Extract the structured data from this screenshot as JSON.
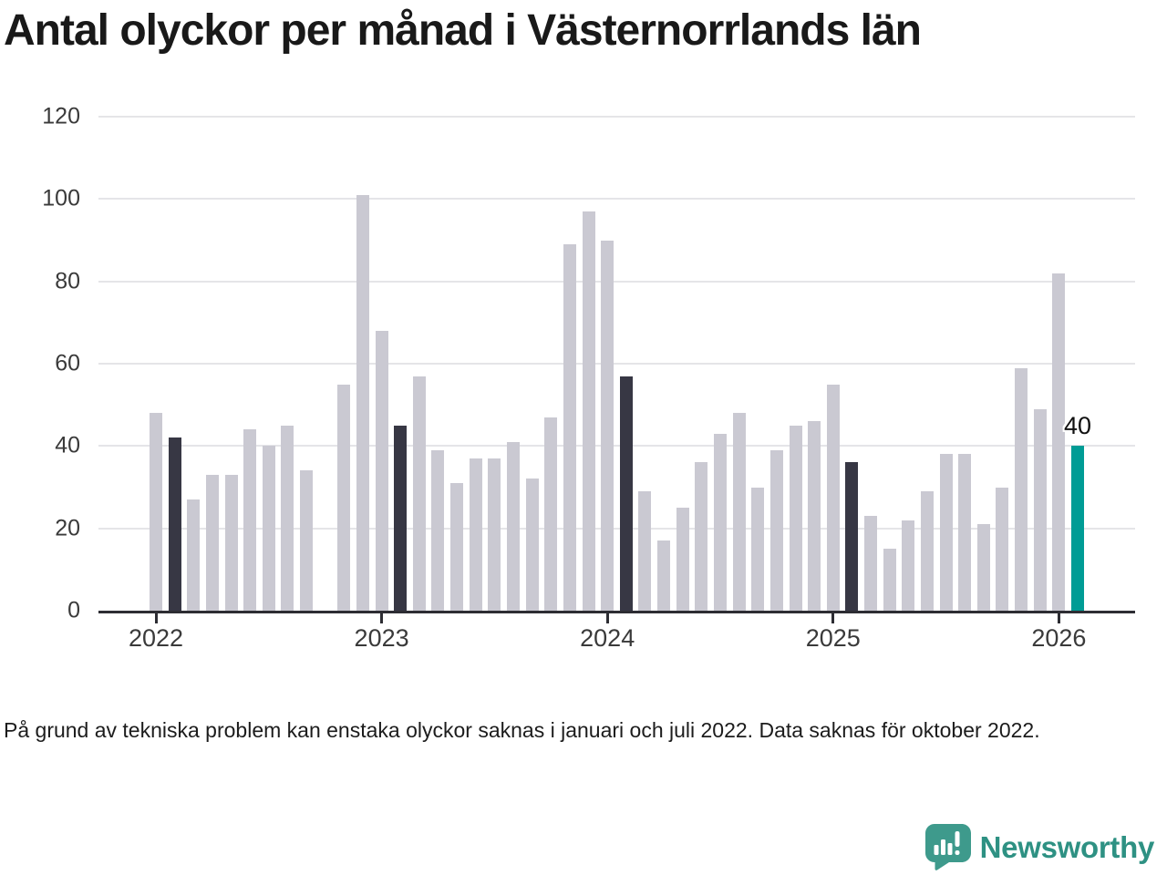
{
  "title": "Antal olyckor per månad i Västernorrlands län",
  "footnote": "På grund av tekniska problem kan enstaka olyckor saknas i januari och juli 2022. Data saknas för oktober 2022.",
  "brand": {
    "name": "Newsworthy"
  },
  "colors": {
    "bar_default": "#cac9d2",
    "bar_highlight": "#373744",
    "bar_latest": "#009c95",
    "axis": "#2d2d33",
    "gridline": "#e5e5e8",
    "tick_label": "#3a3a3a",
    "logo_teal": "#3e9a8c"
  },
  "chart_data": {
    "type": "bar",
    "title": "Antal olyckor per månad i Västernorrlands län",
    "xlabel": "",
    "ylabel": "",
    "ylim": [
      0,
      120
    ],
    "yticks": [
      0,
      20,
      40,
      60,
      80,
      100,
      120
    ],
    "grid": "horizontal",
    "legend": false,
    "annotation": {
      "month": "2026-02",
      "text": "40"
    },
    "year_ticks": [
      {
        "label": "2022",
        "index": 0
      },
      {
        "label": "2023",
        "index": 12
      },
      {
        "label": "2024",
        "index": 24
      },
      {
        "label": "2025",
        "index": 36
      },
      {
        "label": "2026",
        "index": 48
      }
    ],
    "months": [
      {
        "month": "2022-01",
        "value": 48,
        "state": "normal"
      },
      {
        "month": "2022-02",
        "value": 42,
        "state": "highlight"
      },
      {
        "month": "2022-03",
        "value": 27,
        "state": "normal"
      },
      {
        "month": "2022-04",
        "value": 33,
        "state": "normal"
      },
      {
        "month": "2022-05",
        "value": 33,
        "state": "normal"
      },
      {
        "month": "2022-06",
        "value": 44,
        "state": "normal"
      },
      {
        "month": "2022-07",
        "value": 40,
        "state": "normal"
      },
      {
        "month": "2022-08",
        "value": 45,
        "state": "normal"
      },
      {
        "month": "2022-09",
        "value": 34,
        "state": "normal"
      },
      {
        "month": "2022-10",
        "value": null,
        "state": "missing"
      },
      {
        "month": "2022-11",
        "value": 55,
        "state": "normal"
      },
      {
        "month": "2022-12",
        "value": 101,
        "state": "normal"
      },
      {
        "month": "2023-01",
        "value": 68,
        "state": "normal"
      },
      {
        "month": "2023-02",
        "value": 45,
        "state": "highlight"
      },
      {
        "month": "2023-03",
        "value": 57,
        "state": "normal"
      },
      {
        "month": "2023-04",
        "value": 39,
        "state": "normal"
      },
      {
        "month": "2023-05",
        "value": 31,
        "state": "normal"
      },
      {
        "month": "2023-06",
        "value": 37,
        "state": "normal"
      },
      {
        "month": "2023-07",
        "value": 37,
        "state": "normal"
      },
      {
        "month": "2023-08",
        "value": 41,
        "state": "normal"
      },
      {
        "month": "2023-09",
        "value": 32,
        "state": "normal"
      },
      {
        "month": "2023-10",
        "value": 47,
        "state": "normal"
      },
      {
        "month": "2023-11",
        "value": 89,
        "state": "normal"
      },
      {
        "month": "2023-12",
        "value": 97,
        "state": "normal"
      },
      {
        "month": "2024-01",
        "value": 90,
        "state": "normal"
      },
      {
        "month": "2024-02",
        "value": 57,
        "state": "highlight"
      },
      {
        "month": "2024-03",
        "value": 29,
        "state": "normal"
      },
      {
        "month": "2024-04",
        "value": 17,
        "state": "normal"
      },
      {
        "month": "2024-05",
        "value": 25,
        "state": "normal"
      },
      {
        "month": "2024-06",
        "value": 36,
        "state": "normal"
      },
      {
        "month": "2024-07",
        "value": 43,
        "state": "normal"
      },
      {
        "month": "2024-08",
        "value": 48,
        "state": "normal"
      },
      {
        "month": "2024-09",
        "value": 30,
        "state": "normal"
      },
      {
        "month": "2024-10",
        "value": 39,
        "state": "normal"
      },
      {
        "month": "2024-11",
        "value": 45,
        "state": "normal"
      },
      {
        "month": "2024-12",
        "value": 46,
        "state": "normal"
      },
      {
        "month": "2025-01",
        "value": 55,
        "state": "normal"
      },
      {
        "month": "2025-02",
        "value": 36,
        "state": "highlight"
      },
      {
        "month": "2025-03",
        "value": 23,
        "state": "normal"
      },
      {
        "month": "2025-04",
        "value": 15,
        "state": "normal"
      },
      {
        "month": "2025-05",
        "value": 22,
        "state": "normal"
      },
      {
        "month": "2025-06",
        "value": 29,
        "state": "normal"
      },
      {
        "month": "2025-07",
        "value": 38,
        "state": "normal"
      },
      {
        "month": "2025-08",
        "value": 38,
        "state": "normal"
      },
      {
        "month": "2025-09",
        "value": 21,
        "state": "normal"
      },
      {
        "month": "2025-10",
        "value": 30,
        "state": "normal"
      },
      {
        "month": "2025-11",
        "value": 59,
        "state": "normal"
      },
      {
        "month": "2025-12",
        "value": 49,
        "state": "normal"
      },
      {
        "month": "2026-01",
        "value": 82,
        "state": "normal"
      },
      {
        "month": "2026-02",
        "value": 40,
        "state": "latest"
      }
    ]
  }
}
